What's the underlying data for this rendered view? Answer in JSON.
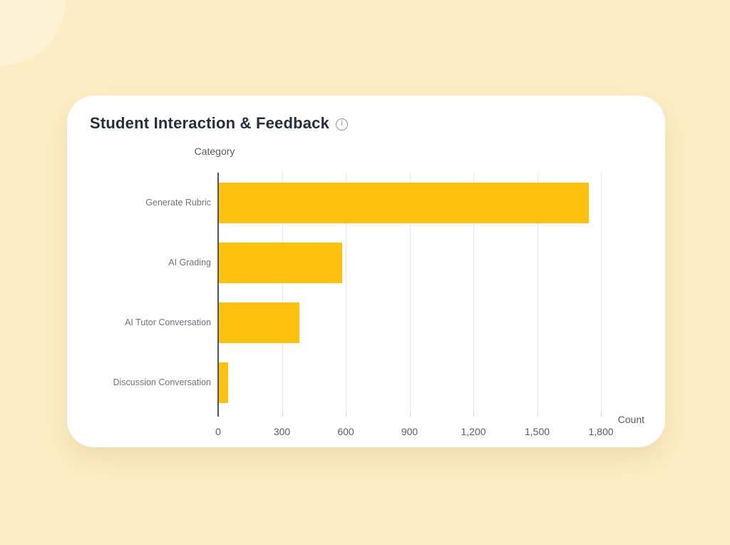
{
  "page": {
    "background_color": "#FCEDC4"
  },
  "card": {
    "title": "Student Interaction & Feedback",
    "info_glyph": "i",
    "background_color": "#FFFFFF"
  },
  "chart_data": {
    "type": "bar",
    "orientation": "horizontal",
    "title": "Student Interaction & Feedback",
    "categories": [
      "Generate Rubric",
      "AI Grading",
      "AI Tutor Conversation",
      "Discussion Conversation"
    ],
    "values": [
      1740,
      580,
      380,
      45
    ],
    "xlabel": "Count",
    "ylabel": "Category",
    "xlim": [
      0,
      1800
    ],
    "xticks": [
      0,
      300,
      600,
      900,
      1200,
      1500,
      1800
    ],
    "xtick_labels": [
      "0",
      "300",
      "600",
      "900",
      "1,200",
      "1,500",
      "1,800"
    ],
    "bar_color": "#FEC10D",
    "axis_line_color": "#4D5564",
    "gridline_color": "#E8E8E8",
    "label_color": "#6E747E",
    "grid": true,
    "legend": false
  }
}
